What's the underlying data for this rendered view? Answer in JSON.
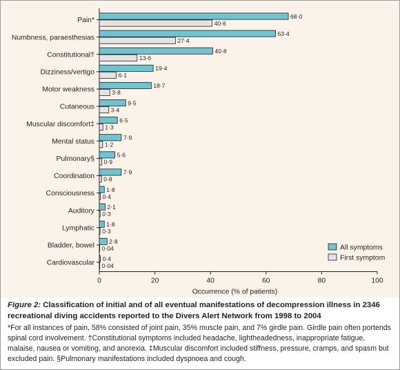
{
  "chart_data": {
    "type": "bar",
    "orientation": "horizontal",
    "categories": [
      "Pain*",
      "Numbness, paraesthesias",
      "Constitutional†",
      "Dizziness/vertigo",
      "Motor weakness",
      "Cutaneous",
      "Muscular discomfort‡",
      "Mental status",
      "Pulmonary§",
      "Coordination",
      "Consciousness",
      "Auditory",
      "Lymphatic",
      "Bladder, bowel",
      "Cardiovascular"
    ],
    "series": [
      {
        "name": "All symptoms",
        "color": "#6cc5d1",
        "values": [
          68.0,
          63.4,
          40.8,
          19.4,
          18.7,
          9.5,
          6.5,
          7.9,
          5.6,
          7.9,
          1.8,
          2.1,
          1.8,
          2.8,
          0.4
        ],
        "labels": [
          "68·0",
          "63·4",
          "40·8",
          "19·4",
          "18·7",
          "9·5",
          "6·5",
          "7·9",
          "5·6",
          "7·9",
          "1·8",
          "2·1",
          "1·8",
          "2·8",
          "0·4"
        ]
      },
      {
        "name": "First symptom",
        "color": "#e3e3e3",
        "values": [
          40.6,
          27.4,
          13.6,
          6.1,
          3.8,
          3.4,
          1.3,
          1.2,
          0.9,
          0.8,
          0.4,
          0.3,
          0.3,
          0.04,
          0.04
        ],
        "labels": [
          "40·6",
          "27·4",
          "13·6",
          "6·1",
          "3·8",
          "3·4",
          "1·3",
          "1·2",
          "0·9",
          "0·8",
          "0·4",
          "0·3",
          "0·3",
          "0·04",
          "0·04"
        ]
      }
    ],
    "xlabel": "Occurrence (% of patients)",
    "xlim": [
      0,
      100
    ],
    "xticks": [
      "0",
      "20",
      "40",
      "60",
      "80",
      "100"
    ],
    "grid": false,
    "legend_position": "bottom-right",
    "background": "#fbf2e9"
  },
  "caption": {
    "label": "Figure 2:",
    "title": "Classification of initial and of all eventual manifestations of decompression illness in 2346 recreational diving accidents reported to the Divers Alert Network from 1998 to 2004",
    "notes": "*For all instances of pain, 58% consisted of joint pain, 35% muscle pain, and 7% girdle pain. Girdle pain often portends spinal cord involvement. †Constitutional symptoms included headache, lightheadedness, inappropriate fatigue, malaise, nausea or vomiting, and anorexia. ‡Muscular discomfort included stiffness, pressure, cramps, and spasm but excluded pain. §Pulmonary manifestations included dyspnoea and cough."
  }
}
